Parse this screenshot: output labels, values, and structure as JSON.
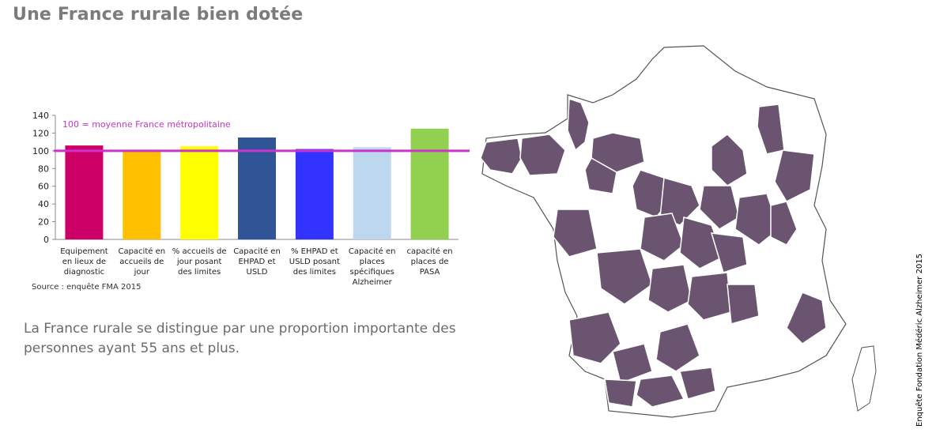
{
  "page": {
    "title": "Une France rurale bien dotée",
    "source": "Source : enquête FMA 2015",
    "body_text": "La France rurale se distingue par une proportion importante des personnes ayant 55 ans et plus.",
    "credit": "Enquête Fondation Médéric Alzheimer 2015"
  },
  "chart_data": {
    "type": "bar",
    "categories": [
      "Equipement en lieux de diagnostic",
      "Capacité en accueils de jour",
      "% accueils de jour posant des limites",
      "Capacité en EHPAD et USLD",
      "% EHPAD et USLD posant des limites",
      "Capacité en places spécifiques Alzheimer",
      "capacité en places de PASA"
    ],
    "values": [
      106,
      100,
      105,
      115,
      102,
      104,
      125
    ],
    "colors": [
      "#cc0066",
      "#ffc000",
      "#ffff00",
      "#2f5597",
      "#3333ff",
      "#bdd7ee",
      "#92d050"
    ],
    "ylim": [
      0,
      140
    ],
    "yticks": [
      0,
      20,
      40,
      60,
      80,
      100,
      120,
      140
    ],
    "reference_line": {
      "value": 100,
      "label": "100 = moyenne France métropolitaine",
      "color": "#cc33cc"
    },
    "grid": false,
    "legend": "none"
  },
  "map": {
    "region": "France métropolitaine (départements)",
    "highlight_color": "#6b5470",
    "base_color": "#ffffff",
    "border_color": "#555555"
  }
}
